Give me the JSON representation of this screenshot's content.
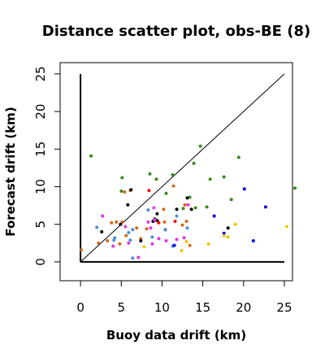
{
  "chart_data": {
    "type": "scatter",
    "title": "Distance scatter plot, obs-BE (8)",
    "xlabel": "Buoy data drift (km)",
    "ylabel": "Forecast drift (km)",
    "xlim": [
      -2.5,
      26
    ],
    "ylim": [
      -2.5,
      26.5
    ],
    "xticks": [
      0,
      5,
      10,
      15,
      20,
      25
    ],
    "yticks": [
      0,
      5,
      10,
      15,
      20,
      25
    ],
    "reference_line": {
      "label": "",
      "from": [
        0,
        0
      ],
      "to": [
        25,
        25
      ]
    },
    "drawn_axes": {
      "x_axis": {
        "y": 0,
        "from": 0,
        "to": 25
      },
      "y_axis": {
        "x": 0,
        "from": 0,
        "to": 25
      }
    },
    "series": [
      {
        "color": "#3a8a1a",
        "points": [
          [
            1.3,
            14.1
          ],
          [
            5.1,
            11.2
          ],
          [
            8.5,
            11.7
          ],
          [
            11.3,
            11.6
          ],
          [
            13.9,
            13.1
          ],
          [
            14.7,
            15.4
          ],
          [
            17.6,
            11.3
          ],
          [
            19.4,
            13.9
          ],
          [
            26.3,
            9.8
          ],
          [
            10.5,
            9.1
          ],
          [
            12.6,
            7.1
          ],
          [
            13.4,
            8.6
          ],
          [
            15.5,
            7.3
          ],
          [
            18.5,
            8.3
          ],
          [
            9.3,
            11.0
          ],
          [
            5.0,
            9.4
          ],
          [
            15.9,
            11.0
          ],
          [
            14.1,
            7.2
          ]
        ]
      },
      {
        "color": "#d2691e",
        "points": [
          [
            0.1,
            1.6
          ],
          [
            2.2,
            2.5
          ],
          [
            3.3,
            2.8
          ],
          [
            4.8,
            2.4
          ],
          [
            5.6,
            3.5
          ],
          [
            6.9,
            4.5
          ],
          [
            5.1,
            5.3
          ],
          [
            4.4,
            5.3
          ],
          [
            10.2,
            7.0
          ],
          [
            11.4,
            10.1
          ],
          [
            12.8,
            7.6
          ],
          [
            13.0,
            5.4
          ],
          [
            6.1,
            9.5
          ],
          [
            5.4,
            9.3
          ],
          [
            8.1,
            4.4
          ],
          [
            3.8,
            5.2
          ],
          [
            7.4,
            3.1
          ],
          [
            12.5,
            4.9
          ],
          [
            13.4,
            2.2
          ],
          [
            10.3,
            5.3
          ]
        ]
      },
      {
        "color": "#000000",
        "points": [
          [
            2.6,
            4.0
          ],
          [
            4.9,
            5.0
          ],
          [
            5.8,
            7.6
          ],
          [
            6.2,
            9.6
          ],
          [
            7.4,
            2.8
          ],
          [
            8.9,
            5.4
          ],
          [
            9.4,
            6.4
          ],
          [
            9.1,
            5.7
          ],
          [
            11.8,
            7.0
          ],
          [
            13.1,
            8.5
          ],
          [
            13.6,
            7.0
          ],
          [
            18.1,
            4.5
          ],
          [
            9.4,
            5.5
          ],
          [
            10.4,
            4.3
          ]
        ]
      },
      {
        "color": "#4a90d9",
        "points": [
          [
            2.0,
            4.6
          ],
          [
            4.1,
            2.9
          ],
          [
            5.9,
            3.9
          ],
          [
            6.4,
            4.3
          ],
          [
            6.4,
            0.5
          ],
          [
            8.3,
            6.9
          ],
          [
            10.4,
            4.3
          ],
          [
            11.3,
            2.1
          ],
          [
            11.8,
            6.1
          ],
          [
            13.1,
            4.5
          ],
          [
            8.8,
            3.3
          ],
          [
            6.1,
            2.9
          ],
          [
            4.2,
            3.2
          ]
        ]
      },
      {
        "color": "#e632e6",
        "points": [
          [
            2.7,
            6.1
          ],
          [
            5.5,
            4.7
          ],
          [
            5.9,
            2.5
          ],
          [
            7.1,
            0.6
          ],
          [
            8.8,
            2.4
          ],
          [
            9.1,
            5.6
          ],
          [
            8.6,
            4.5
          ],
          [
            9.6,
            3.1
          ],
          [
            10.5,
            2.8
          ],
          [
            11.8,
            3.0
          ],
          [
            12.7,
            3.2
          ],
          [
            13.2,
            7.6
          ],
          [
            9.0,
            7.2
          ],
          [
            8.3,
            5.3
          ],
          [
            4.0,
            2.1
          ]
        ]
      },
      {
        "color": "#0000ee",
        "points": [
          [
            11.5,
            2.2
          ],
          [
            16.4,
            6.1
          ],
          [
            17.6,
            3.8
          ],
          [
            20.1,
            9.7
          ],
          [
            21.2,
            2.8
          ],
          [
            22.7,
            7.3
          ]
        ]
      },
      {
        "color": "#ff0000",
        "points": [
          [
            8.4,
            9.5
          ],
          [
            9.6,
            5.2
          ],
          [
            11.6,
            5.4
          ]
        ]
      },
      {
        "color": "#f5c400",
        "points": [
          [
            13.0,
            2.7
          ],
          [
            15.7,
            2.4
          ],
          [
            17.6,
            3.5
          ],
          [
            18.1,
            3.3
          ],
          [
            19.0,
            5.0
          ],
          [
            25.3,
            4.7
          ],
          [
            12.4,
            1.5
          ],
          [
            7.8,
            2.0
          ]
        ]
      }
    ],
    "grid": false,
    "legend": "none"
  }
}
